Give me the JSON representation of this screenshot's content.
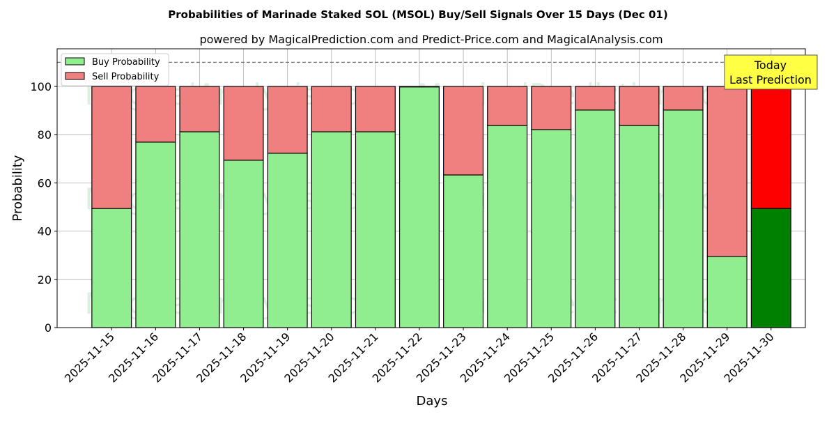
{
  "chart_data": {
    "type": "bar",
    "stacked": true,
    "title": "Probabilities of Marinade Staked SOL (MSOL) Buy/Sell Signals Over 15 Days (Dec 01)",
    "subtitle": "powered by MagicalPrediction.com and Predict-Price.com and MagicalAnalysis.com",
    "xlabel": "Days",
    "ylabel": "Probability",
    "ylim": [
      0,
      115.6
    ],
    "yticks": [
      0,
      20,
      40,
      60,
      80,
      100
    ],
    "grid": true,
    "legend_position": "top-left",
    "categories": [
      "2025-11-15",
      "2025-11-16",
      "2025-11-17",
      "2025-11-18",
      "2025-11-19",
      "2025-11-20",
      "2025-11-21",
      "2025-11-22",
      "2025-11-23",
      "2025-11-24",
      "2025-11-25",
      "2025-11-26",
      "2025-11-27",
      "2025-11-28",
      "2025-11-29",
      "2025-11-30"
    ],
    "series": [
      {
        "name": "Buy Probability",
        "color": "#90ee90",
        "last_color": "#008000",
        "values": [
          49.4,
          76.9,
          81.2,
          69.4,
          72.3,
          81.2,
          81.2,
          99.8,
          63.3,
          83.8,
          82.1,
          90.2,
          83.8,
          90.2,
          29.5,
          49.4
        ]
      },
      {
        "name": "Sell Probability",
        "color": "#f08080",
        "last_color": "#ff0000",
        "values": [
          50.6,
          23.1,
          18.8,
          30.6,
          27.7,
          18.8,
          18.8,
          0.2,
          36.7,
          16.2,
          17.9,
          9.8,
          16.2,
          9.8,
          70.5,
          50.6
        ]
      }
    ],
    "reference_line": 110,
    "annotation": {
      "line1": "Today",
      "line2": "Last Prediction",
      "color": "#ffff44"
    },
    "watermarks": [
      "MagicalAnalysis.com",
      "MagicalPrediction.com"
    ]
  }
}
